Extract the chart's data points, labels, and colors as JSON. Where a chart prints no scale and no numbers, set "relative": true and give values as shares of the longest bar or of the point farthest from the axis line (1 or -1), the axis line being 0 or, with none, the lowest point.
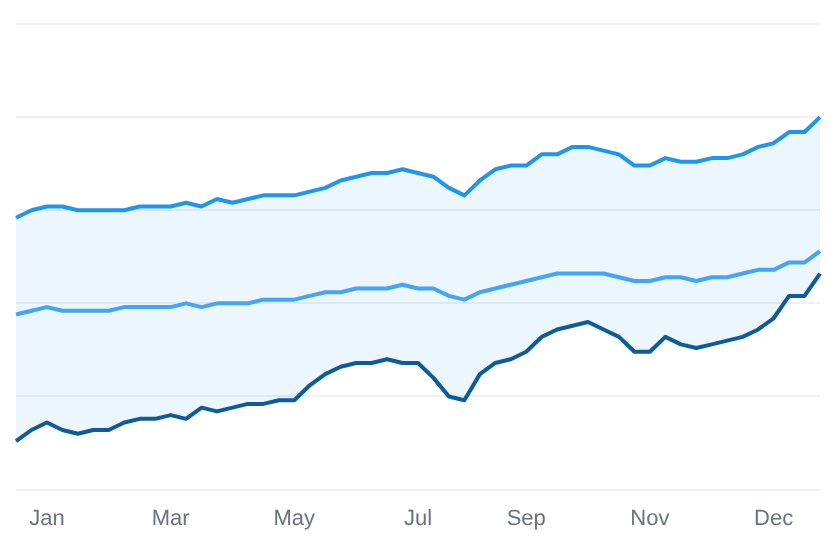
{
  "chart_data": {
    "type": "line",
    "relative": true,
    "grid": "y",
    "marker": "none",
    "line_style": "solid",
    "categories": [
      null,
      null,
      "Jan",
      null,
      null,
      null,
      null,
      null,
      null,
      null,
      "Mar",
      null,
      null,
      null,
      null,
      null,
      null,
      null,
      "May",
      null,
      null,
      null,
      null,
      null,
      null,
      null,
      "Jul",
      null,
      null,
      null,
      null,
      null,
      null,
      "Sep",
      null,
      null,
      null,
      null,
      null,
      null,
      null,
      "Nov",
      null,
      null,
      null,
      null,
      null,
      null,
      null,
      "Dec",
      null,
      null,
      null
    ],
    "series": [
      {
        "color": "#1e96f0",
        "values": [
          0.73,
          0.75,
          0.76,
          0.76,
          0.75,
          0.75,
          0.75,
          0.75,
          0.76,
          0.76,
          0.76,
          0.77,
          0.76,
          0.78,
          0.77,
          0.78,
          0.79,
          0.79,
          0.79,
          0.8,
          0.81,
          0.83,
          0.84,
          0.85,
          0.85,
          0.86,
          0.85,
          0.84,
          0.81,
          0.79,
          0.83,
          0.86,
          0.87,
          0.87,
          0.9,
          0.9,
          0.92,
          0.92,
          0.91,
          0.9,
          0.87,
          0.87,
          0.89,
          0.88,
          0.88,
          0.89,
          0.89,
          0.9,
          0.92,
          0.93,
          0.96,
          0.96,
          1
        ]
      },
      {
        "color": "#42a5f5",
        "values": [
          0.47,
          0.48,
          0.49,
          0.48,
          0.48,
          0.48,
          0.48,
          0.49,
          0.49,
          0.49,
          0.49,
          0.5,
          0.49,
          0.5,
          0.5,
          0.5,
          0.51,
          0.51,
          0.51,
          0.52,
          0.53,
          0.53,
          0.54,
          0.54,
          0.54,
          0.55,
          0.54,
          0.54,
          0.52,
          0.51,
          0.53,
          0.54,
          0.55,
          0.56,
          0.57,
          0.58,
          0.58,
          0.58,
          0.58,
          0.57,
          0.56,
          0.56,
          0.57,
          0.57,
          0.56,
          0.57,
          0.57,
          0.58,
          0.59,
          0.59,
          0.61,
          0.61,
          0.64
        ],
        "upper": [
          0.73,
          0.75,
          0.76,
          0.76,
          0.75,
          0.75,
          0.75,
          0.75,
          0.76,
          0.76,
          0.76,
          0.77,
          0.76,
          0.78,
          0.77,
          0.78,
          0.79,
          0.79,
          0.79,
          0.8,
          0.81,
          0.83,
          0.84,
          0.85,
          0.85,
          0.86,
          0.85,
          0.84,
          0.81,
          0.79,
          0.83,
          0.86,
          0.87,
          0.87,
          0.9,
          0.9,
          0.92,
          0.92,
          0.91,
          0.9,
          0.87,
          0.87,
          0.89,
          0.88,
          0.88,
          0.89,
          0.89,
          0.9,
          0.92,
          0.93,
          0.96,
          0.96,
          1
        ],
        "lower": [
          0.13,
          0.16,
          0.18,
          0.16,
          0.15,
          0.16,
          0.16,
          0.18,
          0.19,
          0.19,
          0.2,
          0.19,
          0.22,
          0.21,
          0.22,
          0.23,
          0.23,
          0.24,
          0.24,
          0.28,
          0.31,
          0.33,
          0.34,
          0.34,
          0.35,
          0.34,
          0.34,
          0.3,
          0.25,
          0.24,
          0.31,
          0.34,
          0.35,
          0.37,
          0.41,
          0.43,
          0.44,
          0.45,
          0.43,
          0.41,
          0.37,
          0.37,
          0.41,
          0.39,
          0.38,
          0.39,
          0.4,
          0.41,
          0.43,
          0.46,
          0.52,
          0.52,
          0.58
        ]
      },
      {
        "color": "#0d5c99",
        "values": [
          0.13,
          0.16,
          0.18,
          0.16,
          0.15,
          0.16,
          0.16,
          0.18,
          0.19,
          0.19,
          0.2,
          0.19,
          0.22,
          0.21,
          0.22,
          0.23,
          0.23,
          0.24,
          0.24,
          0.28,
          0.31,
          0.33,
          0.34,
          0.34,
          0.35,
          0.34,
          0.34,
          0.3,
          0.25,
          0.24,
          0.31,
          0.34,
          0.35,
          0.37,
          0.41,
          0.43,
          0.44,
          0.45,
          0.43,
          0.41,
          0.37,
          0.37,
          0.41,
          0.39,
          0.38,
          0.39,
          0.4,
          0.41,
          0.43,
          0.46,
          0.52,
          0.52,
          0.58
        ]
      }
    ]
  }
}
